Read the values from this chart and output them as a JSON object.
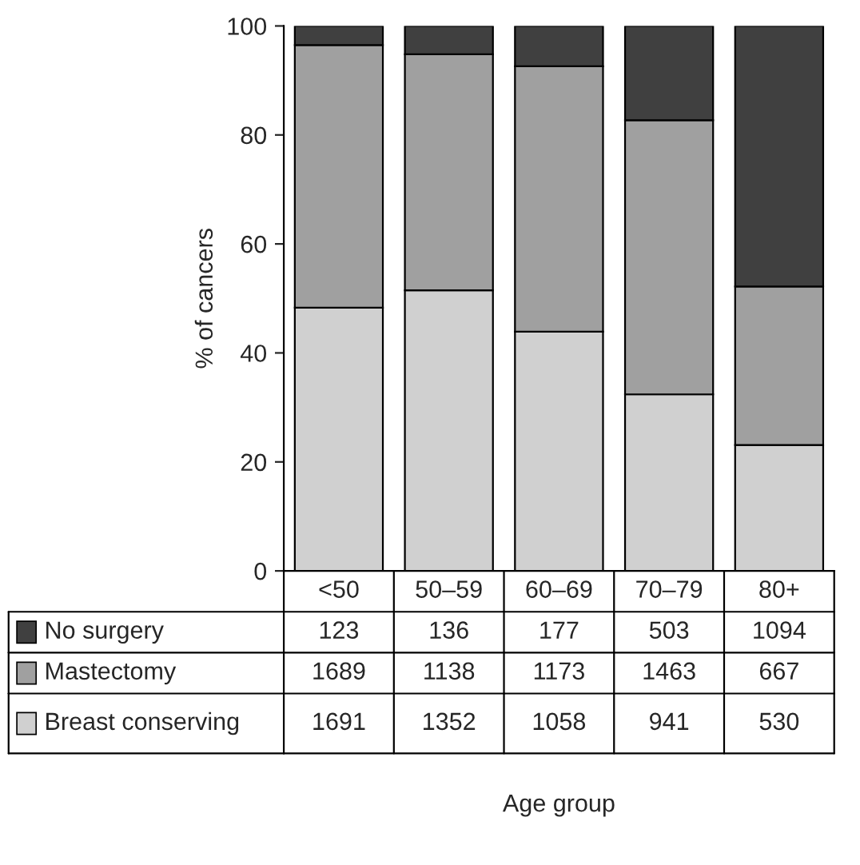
{
  "chart_data": {
    "type": "bar",
    "stacked": true,
    "ylabel": "% of cancers",
    "categories": [
      "<50",
      "50–59",
      "60–69",
      "70–79",
      "80+"
    ],
    "ylim": [
      0,
      100
    ],
    "yticks": [
      0,
      20,
      40,
      60,
      80,
      100
    ],
    "grid": false,
    "legend": "bottom left",
    "tick_labels": "y",
    "series": [
      {
        "name": "Breast conserving",
        "color": "#d0d0d0",
        "values": [
          48.3,
          51.5,
          43.9,
          32.4,
          23.1
        ]
      },
      {
        "name": "Mastectomy",
        "color": "#a0a0a0",
        "values": [
          48.2,
          43.3,
          48.7,
          50.3,
          29.1
        ]
      },
      {
        "name": "No surgery",
        "color": "#404040",
        "values": [
          3.5,
          5.2,
          7.4,
          17.3,
          47.8
        ]
      }
    ],
    "annotations": [
      "123",
      "136",
      "177",
      "503",
      "1094",
      "1689",
      "1138",
      "1173",
      "1463",
      "667",
      "1691",
      "1352",
      "1058",
      "941",
      "530",
      "Age group"
    ]
  }
}
